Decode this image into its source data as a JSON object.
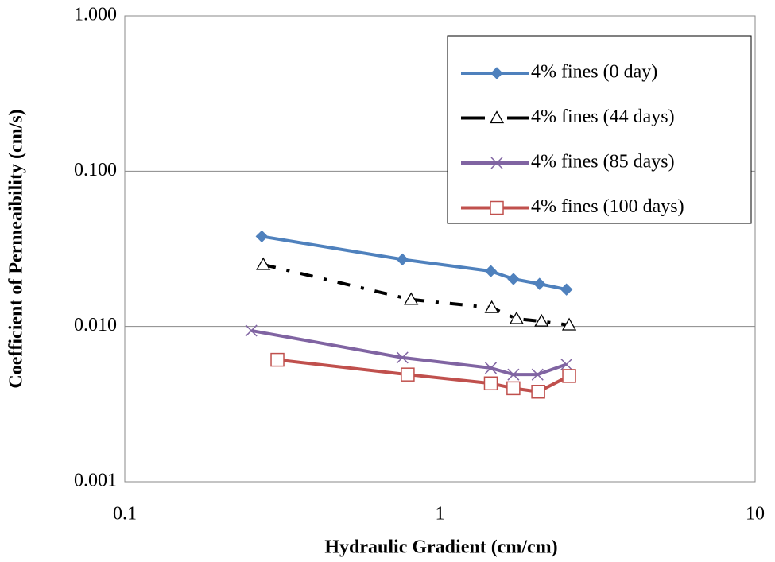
{
  "chart_data": {
    "type": "line",
    "x_label": "Hydraulic Gradient (cm/cm)",
    "y_label": "Coefficient of Permeaibility (cm/s)",
    "x_log": true,
    "y_log": true,
    "grid": true,
    "legend_position": "upper right",
    "xlim": [
      0.1,
      10
    ],
    "xticks": [
      0.1,
      1,
      10
    ],
    "ylim": [
      0.001,
      1
    ],
    "yticks": [
      {
        "value": 0.001,
        "label": "0.001"
      },
      {
        "value": 0.01,
        "label": "0.010"
      },
      {
        "value": 0.1,
        "label": "0.100"
      },
      {
        "value": 1,
        "label": "1.000"
      }
    ],
    "series": [
      {
        "name": "4% fines (0 day)",
        "color": "#4f81bd",
        "marker": "diamond",
        "dash": "solid",
        "x": [
          0.272,
          0.76,
          1.45,
          1.71,
          2.07,
          2.52
        ],
        "values": [
          0.038,
          0.027,
          0.0227,
          0.0202,
          0.0188,
          0.0173
        ]
      },
      {
        "name": "4% fines (44 days)",
        "color": "#000000",
        "marker": "triangle",
        "dash": "dashdot",
        "x": [
          0.275,
          0.81,
          1.46,
          1.75,
          2.1,
          2.57
        ],
        "values": [
          0.025,
          0.0149,
          0.0132,
          0.0112,
          0.0108,
          0.0102
        ]
      },
      {
        "name": "4% fines (85 days)",
        "color": "#8064a2",
        "marker": "x",
        "dash": "solid",
        "x": [
          0.252,
          0.76,
          1.45,
          1.71,
          2.04,
          2.52
        ],
        "values": [
          0.0094,
          0.0063,
          0.0054,
          0.0049,
          0.0049,
          0.0057
        ]
      },
      {
        "name": "4% fines (100 days)",
        "color": "#c0504d",
        "marker": "square",
        "dash": "solid",
        "x": [
          0.305,
          0.79,
          1.45,
          1.71,
          2.05,
          2.57
        ],
        "values": [
          0.0061,
          0.0049,
          0.0043,
          0.004,
          0.0038,
          0.0048
        ]
      }
    ]
  }
}
